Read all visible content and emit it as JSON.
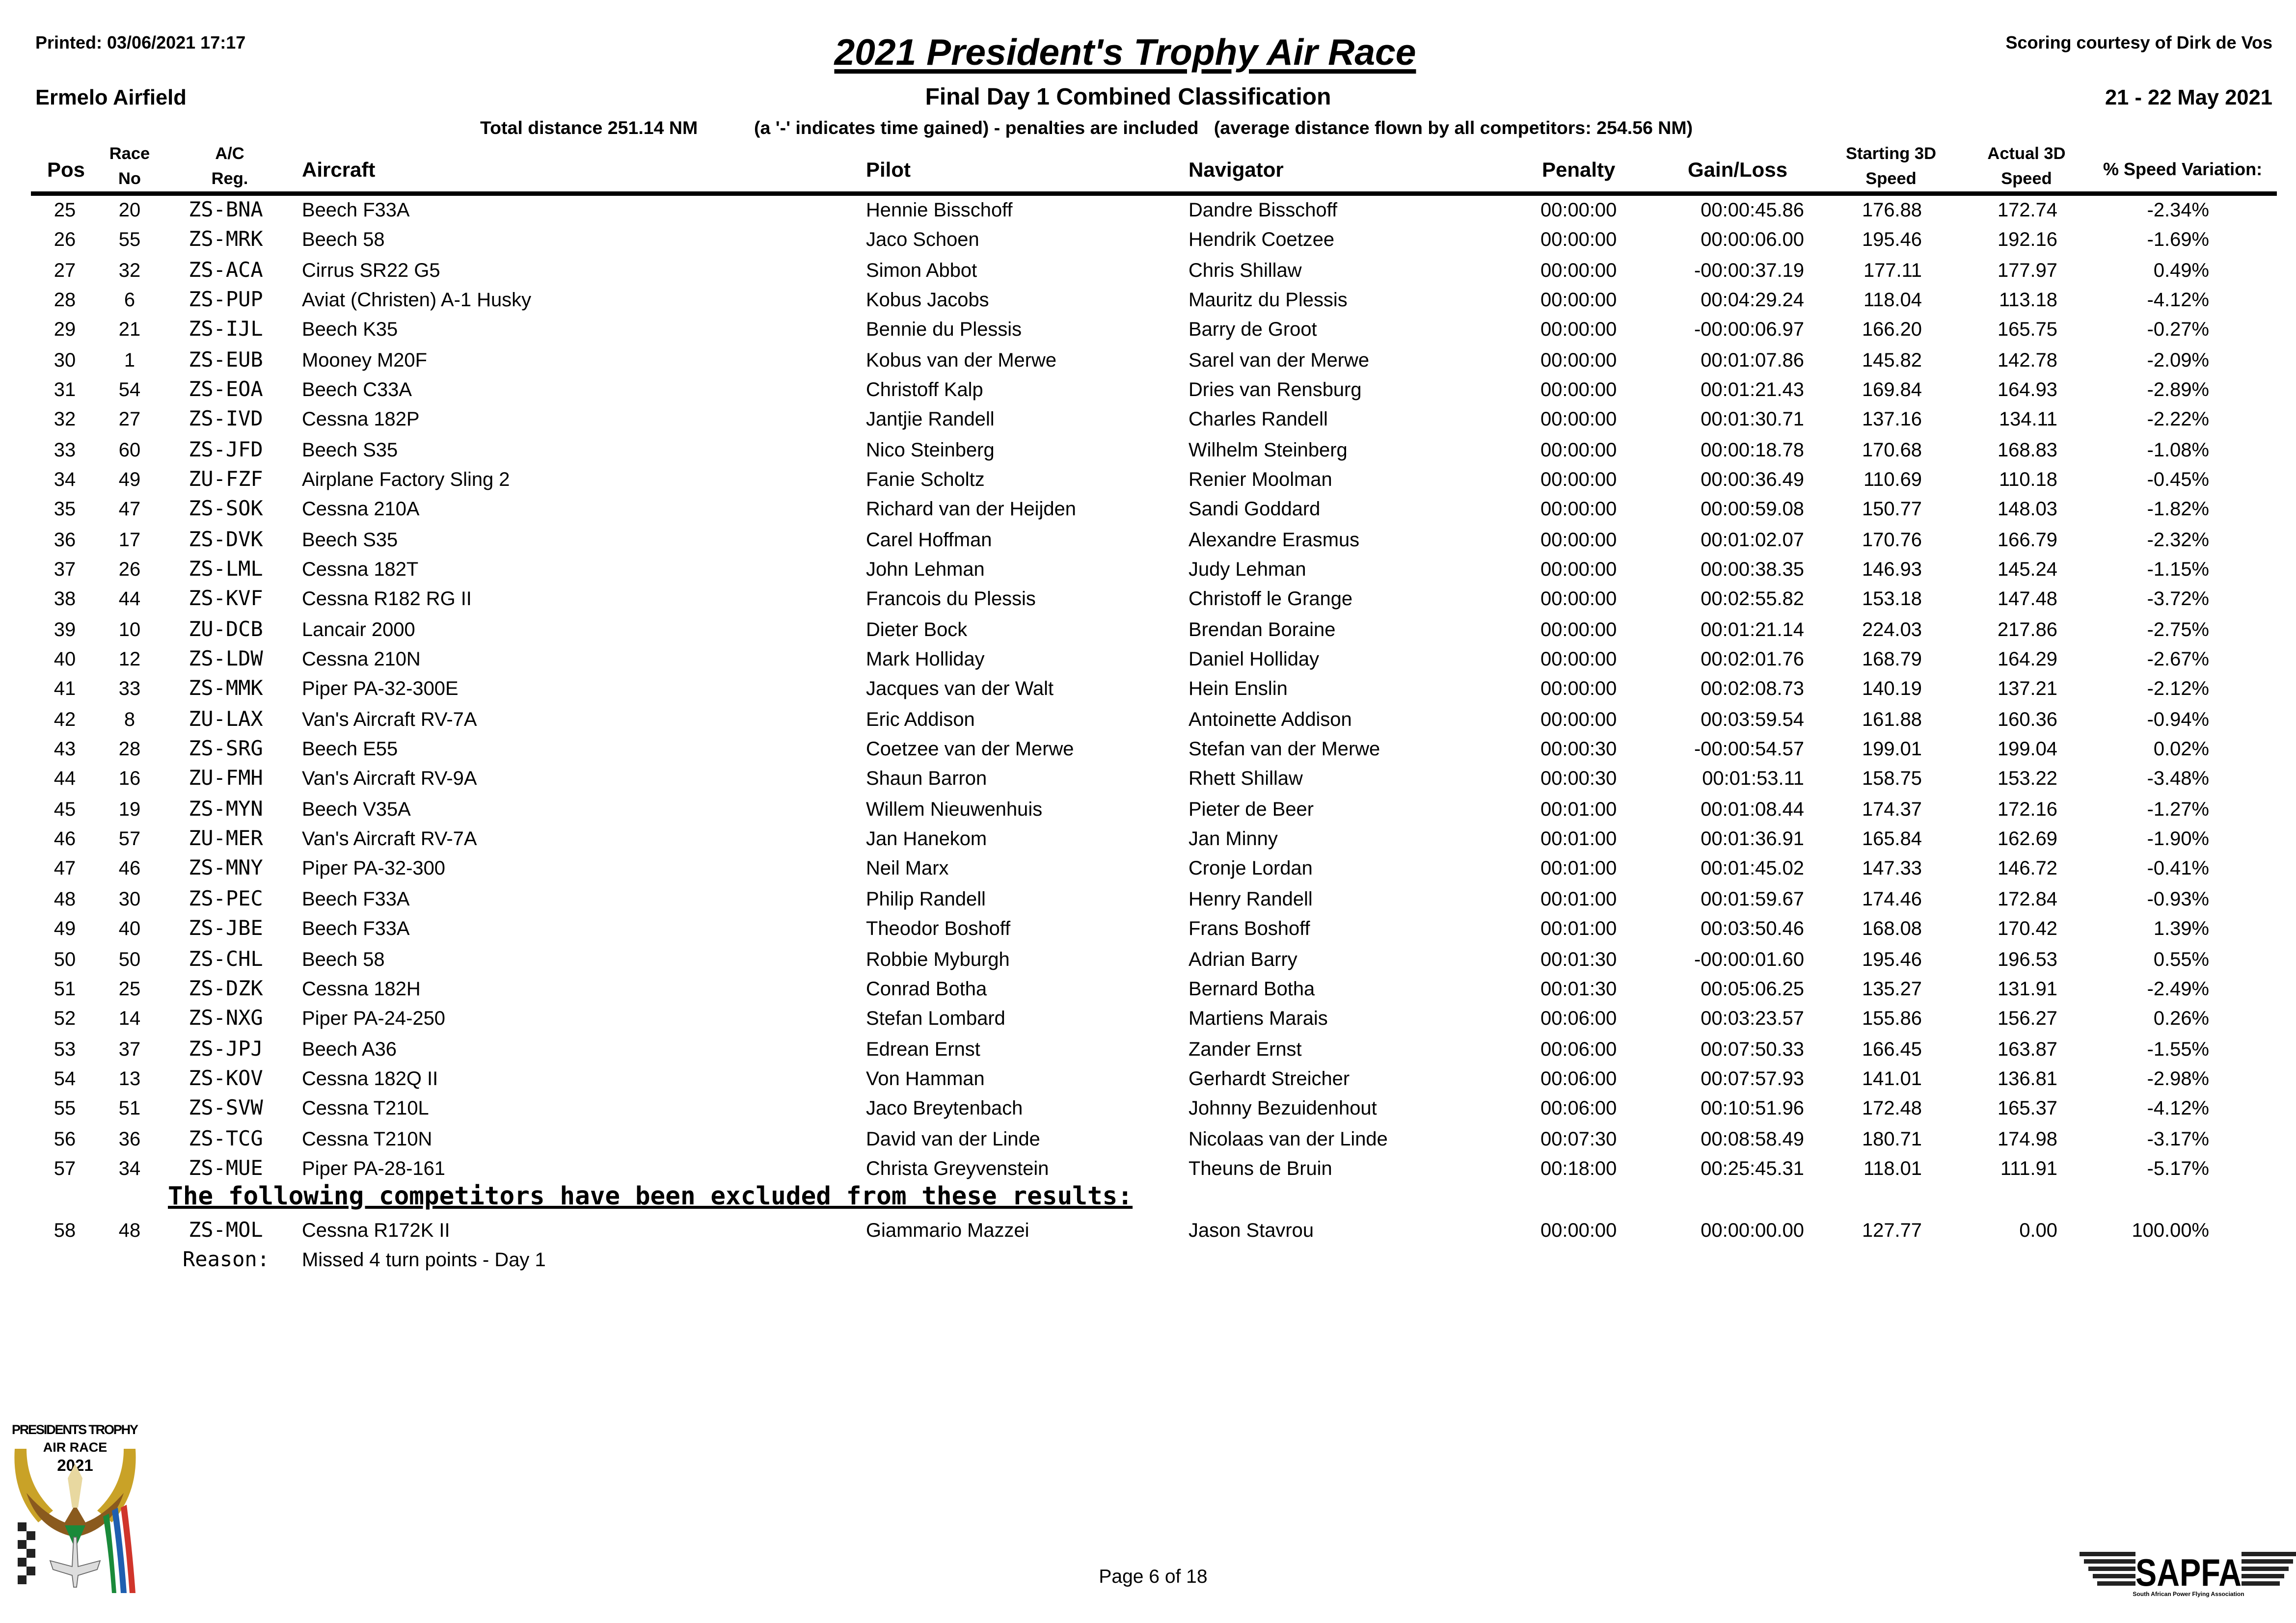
{
  "header": {
    "printed": "Printed:  03/06/2021 17:17",
    "title": "2021 President's Trophy Air Race",
    "scoring": "Scoring courtesy of Dirk de Vos",
    "venue": "Ermelo Airfield",
    "subtitle": "Final Day 1 Combined Classification",
    "dates": "21 - 22 May 2021",
    "total_distance": "Total distance 251.14 NM",
    "note": "(a '-' indicates time gained) - penalties are included   (average distance flown by all competitors: 254.56 NM)"
  },
  "columns": {
    "pos": "Pos",
    "race_no_1": "Race",
    "race_no_2": "No",
    "reg_1": "A/C",
    "reg_2": "Reg.",
    "aircraft": "Aircraft",
    "pilot": "Pilot",
    "navigator": "Navigator",
    "penalty": "Penalty",
    "gain_loss": "Gain/Loss",
    "start_1": "Starting 3D",
    "start_2": "Speed",
    "actual_1": "Actual 3D",
    "actual_2": "Speed",
    "variation": "% Speed Variation:"
  },
  "rows": [
    [
      "25",
      "20",
      "ZS-BNA",
      "Beech F33A",
      "Hennie Bisschoff",
      "Dandre Bisschoff",
      "00:00:00",
      "00:00:45.86",
      "176.88",
      "172.74",
      "-2.34%"
    ],
    [
      "26",
      "55",
      "ZS-MRK",
      "Beech 58",
      "Jaco Schoen",
      "Hendrik Coetzee",
      "00:00:00",
      "00:00:06.00",
      "195.46",
      "192.16",
      "-1.69%"
    ],
    [
      "27",
      "32",
      "ZS-ACA",
      "Cirrus SR22 G5",
      "Simon Abbot",
      "Chris Shillaw",
      "00:00:00",
      "-00:00:37.19",
      "177.11",
      "177.97",
      "0.49%"
    ],
    [
      "28",
      "6",
      "ZS-PUP",
      "Aviat (Christen) A-1 Husky",
      "Kobus Jacobs",
      "Mauritz du Plessis",
      "00:00:00",
      "00:04:29.24",
      "118.04",
      "113.18",
      "-4.12%"
    ],
    [
      "29",
      "21",
      "ZS-IJL",
      "Beech K35",
      "Bennie du Plessis",
      "Barry de Groot",
      "00:00:00",
      "-00:00:06.97",
      "166.20",
      "165.75",
      "-0.27%"
    ],
    [
      "30",
      "1",
      "ZS-EUB",
      "Mooney M20F",
      "Kobus van der Merwe",
      "Sarel van der Merwe",
      "00:00:00",
      "00:01:07.86",
      "145.82",
      "142.78",
      "-2.09%"
    ],
    [
      "31",
      "54",
      "ZS-EOA",
      "Beech C33A",
      "Christoff Kalp",
      "Dries van Rensburg",
      "00:00:00",
      "00:01:21.43",
      "169.84",
      "164.93",
      "-2.89%"
    ],
    [
      "32",
      "27",
      "ZS-IVD",
      "Cessna 182P",
      "Jantjie Randell",
      "Charles Randell",
      "00:00:00",
      "00:01:30.71",
      "137.16",
      "134.11",
      "-2.22%"
    ],
    [
      "33",
      "60",
      "ZS-JFD",
      "Beech S35",
      "Nico Steinberg",
      "Wilhelm Steinberg",
      "00:00:00",
      "00:00:18.78",
      "170.68",
      "168.83",
      "-1.08%"
    ],
    [
      "34",
      "49",
      "ZU-FZF",
      "Airplane Factory Sling 2",
      "Fanie Scholtz",
      "Renier Moolman",
      "00:00:00",
      "00:00:36.49",
      "110.69",
      "110.18",
      "-0.45%"
    ],
    [
      "35",
      "47",
      "ZS-SOK",
      "Cessna 210A",
      "Richard van der Heijden",
      "Sandi Goddard",
      "00:00:00",
      "00:00:59.08",
      "150.77",
      "148.03",
      "-1.82%"
    ],
    [
      "36",
      "17",
      "ZS-DVK",
      "Beech S35",
      "Carel Hoffman",
      "Alexandre Erasmus",
      "00:00:00",
      "00:01:02.07",
      "170.76",
      "166.79",
      "-2.32%"
    ],
    [
      "37",
      "26",
      "ZS-LML",
      "Cessna 182T",
      "John Lehman",
      "Judy Lehman",
      "00:00:00",
      "00:00:38.35",
      "146.93",
      "145.24",
      "-1.15%"
    ],
    [
      "38",
      "44",
      "ZS-KVF",
      "Cessna R182 RG II",
      "Francois du Plessis",
      "Christoff le Grange",
      "00:00:00",
      "00:02:55.82",
      "153.18",
      "147.48",
      "-3.72%"
    ],
    [
      "39",
      "10",
      "ZU-DCB",
      "Lancair 2000",
      "Dieter Bock",
      "Brendan Boraine",
      "00:00:00",
      "00:01:21.14",
      "224.03",
      "217.86",
      "-2.75%"
    ],
    [
      "40",
      "12",
      "ZS-LDW",
      "Cessna 210N",
      "Mark Holliday",
      "Daniel Holliday",
      "00:00:00",
      "00:02:01.76",
      "168.79",
      "164.29",
      "-2.67%"
    ],
    [
      "41",
      "33",
      "ZS-MMK",
      "Piper PA-32-300E",
      "Jacques van der Walt",
      "Hein Enslin",
      "00:00:00",
      "00:02:08.73",
      "140.19",
      "137.21",
      "-2.12%"
    ],
    [
      "42",
      "8",
      "ZU-LAX",
      "Van's Aircraft RV-7A",
      "Eric Addison",
      "Antoinette Addison",
      "00:00:00",
      "00:03:59.54",
      "161.88",
      "160.36",
      "-0.94%"
    ],
    [
      "43",
      "28",
      "ZS-SRG",
      "Beech E55",
      "Coetzee van der Merwe",
      "Stefan van der Merwe",
      "00:00:30",
      "-00:00:54.57",
      "199.01",
      "199.04",
      "0.02%"
    ],
    [
      "44",
      "16",
      "ZU-FMH",
      "Van's Aircraft RV-9A",
      "Shaun Barron",
      "Rhett Shillaw",
      "00:00:30",
      "00:01:53.11",
      "158.75",
      "153.22",
      "-3.48%"
    ],
    [
      "45",
      "19",
      "ZS-MYN",
      "Beech V35A",
      "Willem Nieuwenhuis",
      "Pieter de Beer",
      "00:01:00",
      "00:01:08.44",
      "174.37",
      "172.16",
      "-1.27%"
    ],
    [
      "46",
      "57",
      "ZU-MER",
      "Van's Aircraft RV-7A",
      "Jan Hanekom",
      "Jan Minny",
      "00:01:00",
      "00:01:36.91",
      "165.84",
      "162.69",
      "-1.90%"
    ],
    [
      "47",
      "46",
      "ZS-MNY",
      "Piper PA-32-300",
      "Neil Marx",
      "Cronje Lordan",
      "00:01:00",
      "00:01:45.02",
      "147.33",
      "146.72",
      "-0.41%"
    ],
    [
      "48",
      "30",
      "ZS-PEC",
      "Beech F33A",
      "Philip Randell",
      "Henry Randell",
      "00:01:00",
      "00:01:59.67",
      "174.46",
      "172.84",
      "-0.93%"
    ],
    [
      "49",
      "40",
      "ZS-JBE",
      "Beech F33A",
      "Theodor Boshoff",
      "Frans Boshoff",
      "00:01:00",
      "00:03:50.46",
      "168.08",
      "170.42",
      "1.39%"
    ],
    [
      "50",
      "50",
      "ZS-CHL",
      "Beech 58",
      "Robbie Myburgh",
      "Adrian Barry",
      "00:01:30",
      "-00:00:01.60",
      "195.46",
      "196.53",
      "0.55%"
    ],
    [
      "51",
      "25",
      "ZS-DZK",
      "Cessna 182H",
      "Conrad Botha",
      "Bernard Botha",
      "00:01:30",
      "00:05:06.25",
      "135.27",
      "131.91",
      "-2.49%"
    ],
    [
      "52",
      "14",
      "ZS-NXG",
      "Piper PA-24-250",
      "Stefan Lombard",
      "Martiens Marais",
      "00:06:00",
      "00:03:23.57",
      "155.86",
      "156.27",
      "0.26%"
    ],
    [
      "53",
      "37",
      "ZS-JPJ",
      "Beech A36",
      "Edrean Ernst",
      "Zander Ernst",
      "00:06:00",
      "00:07:50.33",
      "166.45",
      "163.87",
      "-1.55%"
    ],
    [
      "54",
      "13",
      "ZS-KOV",
      "Cessna 182Q II",
      "Von Hamman",
      "Gerhardt Streicher",
      "00:06:00",
      "00:07:57.93",
      "141.01",
      "136.81",
      "-2.98%"
    ],
    [
      "55",
      "51",
      "ZS-SVW",
      "Cessna T210L",
      "Jaco Breytenbach",
      "Johnny Bezuidenhout",
      "00:06:00",
      "00:10:51.96",
      "172.48",
      "165.37",
      "-4.12%"
    ],
    [
      "56",
      "36",
      "ZS-TCG",
      "Cessna T210N",
      "David van der Linde",
      "Nicolaas van der Linde",
      "00:07:30",
      "00:08:58.49",
      "180.71",
      "174.98",
      "-3.17%"
    ],
    [
      "57",
      "34",
      "ZS-MUE",
      "Piper PA-28-161",
      "Christa  Greyvenstein",
      "Theuns de Bruin",
      "00:18:00",
      "00:25:45.31",
      "118.01",
      "111.91",
      "-5.17%"
    ]
  ],
  "excluded": {
    "heading": "The following competitors have been excluded from these results:",
    "rows": [
      [
        "58",
        "48",
        "ZS-MOL",
        "Cessna R172K II",
        "Giammario Mazzei",
        "Jason Stavrou",
        "00:00:00",
        "00:00:00.00",
        "127.77",
        "0.00",
        "100.00%"
      ]
    ],
    "reason_label": "Reason:",
    "reason": "Missed 4 turn points - Day 1"
  },
  "footer": {
    "page": "Page 6 of 18",
    "logo_left_text": [
      "PRESIDENTS TROPHY",
      "AIR RACE",
      "2021"
    ],
    "logo_right_text": "SAPFA",
    "logo_right_subtext": "South African Power Flying Association"
  },
  "colors": {
    "text": "#000000",
    "logo_gold": "#c9a227",
    "logo_brown": "#8a5a1e",
    "flag_green": "#1a8a3a",
    "flag_blue": "#1f5fb0",
    "flag_red": "#d0352b"
  }
}
